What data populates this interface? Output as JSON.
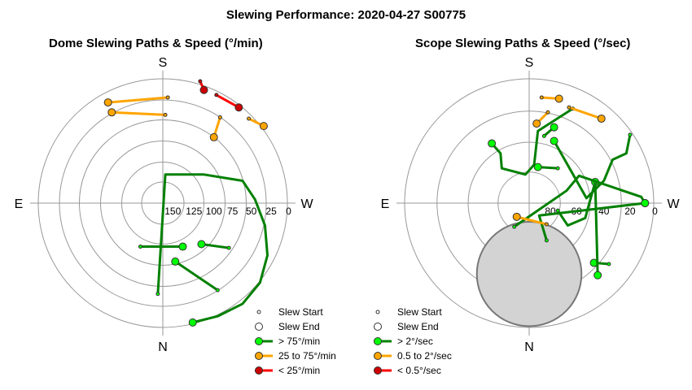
{
  "title": "Slewing Performance: 2020-04-27 S00775",
  "chart_data": [
    {
      "type": "polar-path",
      "title": "Dome Slewing Paths & Speed (°/min)",
      "cardinals": {
        "top": "S",
        "bottom": "N",
        "left": "E",
        "right": "W"
      },
      "radial_ticks": [
        "150",
        "125",
        "100",
        "75",
        "50",
        "25",
        "0"
      ],
      "legend": [
        "Slew Start",
        "Slew End",
        "> 75°/min",
        "25 to 75°/min",
        "< 25°/min"
      ],
      "series": [
        {
          "name": "> 75°/min",
          "color": "#008000",
          "paths": [
            {
              "start": [
                -0.04,
                0.73
              ],
              "end": [
                0.24,
                0.96
              ],
              "points": [
                [
                  0.24,
                  0.96
                ],
                [
                  0.44,
                  0.91
                ],
                [
                  0.64,
                  0.81
                ],
                [
                  0.78,
                  0.64
                ],
                [
                  0.84,
                  0.42
                ],
                [
                  0.82,
                  0.18
                ],
                [
                  0.74,
                  -0.03
                ],
                [
                  0.64,
                  -0.18
                ],
                [
                  0.33,
                  -0.23
                ],
                [
                  0.02,
                  -0.23
                ],
                [
                  -0.04,
                  0.73
                ]
              ]
            },
            {
              "start": [
                0.44,
                0.7
              ],
              "end": [
                0.1,
                0.47
              ],
              "points": [
                [
                  0.44,
                  0.7
                ],
                [
                  0.1,
                  0.47
                ]
              ]
            },
            {
              "start": [
                0.53,
                0.36
              ],
              "end": [
                0.31,
                0.33
              ],
              "points": [
                [
                  0.53,
                  0.36
                ],
                [
                  0.31,
                  0.33
                ]
              ]
            },
            {
              "start": [
                -0.18,
                0.35
              ],
              "end": [
                0.16,
                0.35
              ],
              "points": [
                [
                  -0.18,
                  0.35
                ],
                [
                  0.16,
                  0.35
                ]
              ]
            }
          ]
        },
        {
          "name": "25 to 75°/min",
          "color": "#ffa500",
          "paths": [
            {
              "start": [
                0.04,
                -0.85
              ],
              "end": [
                -0.44,
                -0.81
              ],
              "points": [
                [
                  0.04,
                  -0.85
                ],
                [
                  -0.44,
                  -0.81
                ]
              ]
            },
            {
              "start": [
                0.46,
                -0.69
              ],
              "end": [
                0.41,
                -0.53
              ],
              "points": [
                [
                  0.41,
                  -0.53
                ],
                [
                  0.46,
                  -0.69
                ]
              ]
            },
            {
              "start": [
                0.69,
                -0.68
              ],
              "end": [
                0.81,
                -0.62
              ],
              "points": [
                [
                  0.69,
                  -0.68
                ],
                [
                  0.81,
                  -0.62
                ]
              ]
            },
            {
              "start": [
                0.02,
                -0.71
              ],
              "end": [
                -0.41,
                -0.73
              ],
              "points": [
                [
                  -0.41,
                  -0.73
                ],
                [
                  0.02,
                  -0.71
                ]
              ]
            }
          ]
        },
        {
          "name": "< 25°/min",
          "color": "#ff0000",
          "paths": [
            {
              "start": [
                0.3,
                -0.98
              ],
              "end": [
                0.33,
                -0.91
              ],
              "points": [
                [
                  0.3,
                  -0.98
                ],
                [
                  0.33,
                  -0.91
                ]
              ]
            },
            {
              "start": [
                0.43,
                -0.87
              ],
              "end": [
                0.61,
                -0.77
              ],
              "points": [
                [
                  0.43,
                  -0.87
                ],
                [
                  0.61,
                  -0.77
                ]
              ]
            }
          ]
        }
      ]
    },
    {
      "type": "polar-path",
      "title": "Scope Slewing Paths & Speed (°/sec)",
      "cardinals": {
        "top": "S",
        "bottom": "N",
        "left": "E",
        "right": "W"
      },
      "radial_ticks": [
        "80",
        "60",
        "40",
        "20",
        "0"
      ],
      "legend": [
        "Slew Start",
        "Slew End",
        "> 2°/sec",
        "0.5 to 2°/sec",
        "< 0.5°/sec"
      ],
      "series": [
        {
          "name": "> 2°/sec",
          "color": "#008000",
          "paths": [
            {
              "start": [
                0.64,
                0.49
              ],
              "end": [
                0.52,
                0.48
              ],
              "points": [
                [
                  0.64,
                  0.49
                ],
                [
                  0.52,
                  0.48
                ]
              ]
            },
            {
              "start": [
                0.81,
                -0.55
              ],
              "end": [
                0.2,
                -0.5
              ],
              "points": [
                [
                  0.81,
                  -0.55
                ],
                [
                  0.78,
                  -0.4
                ],
                [
                  0.67,
                  -0.35
                ],
                [
                  0.6,
                  -0.18
                ],
                [
                  0.52,
                  -0.1
                ],
                [
                  0.46,
                  -0.04
                ],
                [
                  0.2,
                  -0.5
                ]
              ]
            },
            {
              "start": [
                0.35,
                -0.76
              ],
              "end": [
                -0.3,
                -0.48
              ],
              "points": [
                [
                  -0.3,
                  -0.48
                ],
                [
                  -0.23,
                  -0.4
                ],
                [
                  -0.22,
                  -0.28
                ],
                [
                  -0.03,
                  -0.23
                ],
                [
                  0.04,
                  -0.31
                ],
                [
                  0.07,
                  -0.58
                ],
                [
                  0.35,
                  -0.76
                ]
              ]
            },
            {
              "start": [
                0.23,
                -0.28
              ],
              "end": [
                0.07,
                -0.29
              ],
              "points": [
                [
                  0.07,
                  -0.29
                ],
                [
                  0.23,
                  -0.28
                ]
              ]
            },
            {
              "start": [
                0.23,
                0.06
              ],
              "end": [
                0.53,
                -0.17
              ],
              "points": [
                [
                  0.23,
                  0.06
                ],
                [
                  0.31,
                  0.18
                ],
                [
                  0.45,
                  0.12
                ],
                [
                  0.53,
                  -0.17
                ]
              ]
            },
            {
              "start": [
                0.53,
                -0.17
              ],
              "end": [
                0.55,
                0.58
              ],
              "points": [
                [
                  0.53,
                  -0.17
                ],
                [
                  0.55,
                  0.58
                ]
              ]
            },
            {
              "start": [
                0.12,
                -0.54
              ],
              "end": [
                0.2,
                -0.61
              ],
              "points": [
                [
                  0.2,
                  -0.61
                ],
                [
                  0.12,
                  -0.54
                ]
              ]
            },
            {
              "start": [
                -0.12,
                0.19
              ],
              "end": [
                0.93,
                0.0
              ],
              "points": [
                [
                  -0.12,
                  0.19
                ],
                [
                  0.3,
                  -0.1
                ],
                [
                  0.4,
                  -0.22
                ],
                [
                  0.9,
                  -0.05
                ],
                [
                  0.93,
                  0.0
                ]
              ]
            },
            {
              "start": [
                0.14,
                0.3
              ],
              "end": [
                0.93,
                0.0
              ],
              "points": [
                [
                  0.14,
                  0.3
                ],
                [
                  0.08,
                  0.1
                ],
                [
                  0.93,
                  0.0
                ]
              ]
            }
          ]
        },
        {
          "name": "0.5 to 2°/sec",
          "color": "#ffa500",
          "paths": [
            {
              "start": [
                0.32,
                -0.77
              ],
              "end": [
                0.58,
                -0.68
              ],
              "points": [
                [
                  0.32,
                  -0.77
                ],
                [
                  0.58,
                  -0.68
                ]
              ]
            },
            {
              "start": [
                0.15,
                -0.73
              ],
              "end": [
                0.06,
                -0.64
              ],
              "points": [
                [
                  0.15,
                  -0.73
                ],
                [
                  0.06,
                  -0.64
                ]
              ]
            },
            {
              "start": [
                0.1,
                -0.85
              ],
              "end": [
                0.24,
                -0.84
              ],
              "points": [
                [
                  0.1,
                  -0.85
                ],
                [
                  0.24,
                  -0.84
                ]
              ]
            },
            {
              "start": [
                0.14,
                0.17
              ],
              "end": [
                -0.1,
                0.11
              ],
              "points": [
                [
                  0.14,
                  0.17
                ],
                [
                  -0.1,
                  0.11
                ]
              ]
            }
          ]
        },
        {
          "name": "< 0.5°/sec",
          "color": "#ff0000",
          "paths": []
        }
      ]
    }
  ],
  "legends": [
    {
      "items": [
        {
          "label": "Slew Start",
          "kind": "start"
        },
        {
          "label": "Slew End",
          "kind": "end"
        },
        {
          "label": "> 75°/min",
          "kind": "line",
          "color": "#008000",
          "fill": "#00ff00"
        },
        {
          "label": "25 to 75°/min",
          "kind": "line",
          "color": "#ffa500",
          "fill": "#ffa500"
        },
        {
          "label": "< 25°/min",
          "kind": "line",
          "color": "#ff0000",
          "fill": "#cc0000"
        }
      ]
    },
    {
      "items": [
        {
          "label": "Slew Start",
          "kind": "start"
        },
        {
          "label": "Slew End",
          "kind": "end"
        },
        {
          "label": "> 2°/sec",
          "kind": "line",
          "color": "#008000",
          "fill": "#00ff00"
        },
        {
          "label": "0.5 to 2°/sec",
          "kind": "line",
          "color": "#ffa500",
          "fill": "#ffa500"
        },
        {
          "label": "< 0.5°/sec",
          "kind": "line",
          "color": "#ff0000",
          "fill": "#cc0000"
        }
      ]
    }
  ]
}
